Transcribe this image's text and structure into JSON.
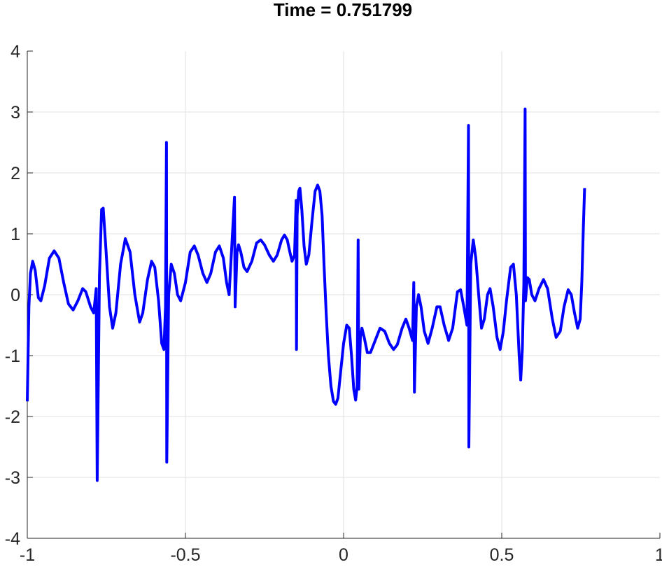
{
  "chart_data": {
    "type": "line",
    "title": "Time = 0.751799",
    "xlabel": "",
    "ylabel": "",
    "xlim": [
      -1,
      1
    ],
    "ylim": [
      -4,
      4
    ],
    "grid": true,
    "legend": "none",
    "x_ticks": [
      -1,
      -0.5,
      0,
      0.5,
      1
    ],
    "x_tick_labels": [
      "-1",
      "-0.5",
      "0",
      "0.5",
      "1"
    ],
    "y_ticks": [
      -4,
      -3,
      -2,
      -1,
      0,
      1,
      2,
      3,
      4
    ],
    "y_tick_labels": [
      "-4",
      "-3",
      "-2",
      "-1",
      "0",
      "1",
      "2",
      "3",
      "4"
    ],
    "colors": {
      "line": "#0000ff",
      "grid": "#e0e0e0",
      "axis": "#262626"
    },
    "series": [
      {
        "name": "",
        "points": [
          [
            -1.0,
            -1.75
          ],
          [
            -0.995,
            -0.2
          ],
          [
            -0.99,
            0.35
          ],
          [
            -0.983,
            0.55
          ],
          [
            -0.975,
            0.4
          ],
          [
            -0.965,
            -0.05
          ],
          [
            -0.957,
            -0.1
          ],
          [
            -0.945,
            0.15
          ],
          [
            -0.93,
            0.6
          ],
          [
            -0.915,
            0.72
          ],
          [
            -0.9,
            0.6
          ],
          [
            -0.885,
            0.2
          ],
          [
            -0.87,
            -0.15
          ],
          [
            -0.855,
            -0.25
          ],
          [
            -0.84,
            -0.1
          ],
          [
            -0.825,
            0.1
          ],
          [
            -0.815,
            0.05
          ],
          [
            -0.8,
            -0.2
          ],
          [
            -0.79,
            -0.3
          ],
          [
            -0.782,
            0.1
          ],
          [
            -0.779,
            -3.05
          ],
          [
            -0.772,
            0.3
          ],
          [
            -0.765,
            1.4
          ],
          [
            -0.76,
            1.42
          ],
          [
            -0.752,
            0.8
          ],
          [
            -0.74,
            -0.2
          ],
          [
            -0.73,
            -0.55
          ],
          [
            -0.72,
            -0.3
          ],
          [
            -0.705,
            0.5
          ],
          [
            -0.69,
            0.92
          ],
          [
            -0.675,
            0.7
          ],
          [
            -0.66,
            0.0
          ],
          [
            -0.645,
            -0.45
          ],
          [
            -0.635,
            -0.3
          ],
          [
            -0.62,
            0.25
          ],
          [
            -0.607,
            0.55
          ],
          [
            -0.597,
            0.45
          ],
          [
            -0.585,
            -0.1
          ],
          [
            -0.575,
            -0.8
          ],
          [
            -0.568,
            -0.9
          ],
          [
            -0.563,
            -0.2
          ],
          [
            -0.56,
            2.5
          ],
          [
            -0.559,
            -2.75
          ],
          [
            -0.553,
            0.0
          ],
          [
            -0.545,
            0.5
          ],
          [
            -0.535,
            0.35
          ],
          [
            -0.525,
            0.0
          ],
          [
            -0.515,
            -0.1
          ],
          [
            -0.5,
            0.2
          ],
          [
            -0.485,
            0.7
          ],
          [
            -0.472,
            0.8
          ],
          [
            -0.46,
            0.65
          ],
          [
            -0.445,
            0.35
          ],
          [
            -0.432,
            0.2
          ],
          [
            -0.42,
            0.35
          ],
          [
            -0.405,
            0.7
          ],
          [
            -0.393,
            0.8
          ],
          [
            -0.38,
            0.6
          ],
          [
            -0.37,
            0.2
          ],
          [
            -0.362,
            0.0
          ],
          [
            -0.345,
            1.6
          ],
          [
            -0.343,
            -0.2
          ],
          [
            -0.337,
            0.7
          ],
          [
            -0.332,
            0.82
          ],
          [
            -0.325,
            0.7
          ],
          [
            -0.315,
            0.45
          ],
          [
            -0.305,
            0.38
          ],
          [
            -0.29,
            0.55
          ],
          [
            -0.275,
            0.85
          ],
          [
            -0.262,
            0.9
          ],
          [
            -0.25,
            0.82
          ],
          [
            -0.235,
            0.65
          ],
          [
            -0.222,
            0.55
          ],
          [
            -0.21,
            0.65
          ],
          [
            -0.196,
            0.9
          ],
          [
            -0.187,
            0.98
          ],
          [
            -0.178,
            0.9
          ],
          [
            -0.17,
            0.7
          ],
          [
            -0.163,
            0.55
          ],
          [
            -0.155,
            0.65
          ],
          [
            -0.15,
            1.55
          ],
          [
            -0.149,
            -0.9
          ],
          [
            -0.147,
            1.3
          ],
          [
            -0.142,
            1.7
          ],
          [
            -0.138,
            1.75
          ],
          [
            -0.132,
            1.4
          ],
          [
            -0.125,
            0.8
          ],
          [
            -0.118,
            0.5
          ],
          [
            -0.11,
            0.65
          ],
          [
            -0.1,
            1.2
          ],
          [
            -0.09,
            1.7
          ],
          [
            -0.082,
            1.8
          ],
          [
            -0.075,
            1.7
          ],
          [
            -0.068,
            1.3
          ],
          [
            -0.062,
            0.5
          ],
          [
            -0.055,
            -0.3
          ],
          [
            -0.048,
            -1.0
          ],
          [
            -0.04,
            -1.5
          ],
          [
            -0.032,
            -1.75
          ],
          [
            -0.025,
            -1.8
          ],
          [
            -0.018,
            -1.7
          ],
          [
            -0.01,
            -1.3
          ],
          [
            0.0,
            -0.8
          ],
          [
            0.01,
            -0.5
          ],
          [
            0.018,
            -0.55
          ],
          [
            0.025,
            -1.0
          ],
          [
            0.032,
            -1.55
          ],
          [
            0.038,
            -1.73
          ],
          [
            0.043,
            -1.5
          ],
          [
            0.046,
            0.9
          ],
          [
            0.048,
            -1.55
          ],
          [
            0.053,
            -0.7
          ],
          [
            0.058,
            -0.55
          ],
          [
            0.065,
            -0.7
          ],
          [
            0.075,
            -0.95
          ],
          [
            0.085,
            -0.95
          ],
          [
            0.1,
            -0.75
          ],
          [
            0.115,
            -0.55
          ],
          [
            0.13,
            -0.6
          ],
          [
            0.145,
            -0.8
          ],
          [
            0.158,
            -0.9
          ],
          [
            0.17,
            -0.82
          ],
          [
            0.185,
            -0.55
          ],
          [
            0.197,
            -0.4
          ],
          [
            0.207,
            -0.55
          ],
          [
            0.218,
            -0.75
          ],
          [
            0.222,
            0.2
          ],
          [
            0.224,
            -1.6
          ],
          [
            0.23,
            -0.2
          ],
          [
            0.237,
            0.0
          ],
          [
            0.245,
            -0.2
          ],
          [
            0.255,
            -0.6
          ],
          [
            0.267,
            -0.8
          ],
          [
            0.28,
            -0.55
          ],
          [
            0.295,
            -0.2
          ],
          [
            0.305,
            -0.2
          ],
          [
            0.318,
            -0.5
          ],
          [
            0.332,
            -0.75
          ],
          [
            0.345,
            -0.55
          ],
          [
            0.36,
            0.05
          ],
          [
            0.37,
            0.08
          ],
          [
            0.38,
            -0.2
          ],
          [
            0.39,
            -0.5
          ],
          [
            0.395,
            2.78
          ],
          [
            0.396,
            -2.5
          ],
          [
            0.402,
            0.5
          ],
          [
            0.41,
            0.9
          ],
          [
            0.418,
            0.6
          ],
          [
            0.427,
            0.0
          ],
          [
            0.436,
            -0.55
          ],
          [
            0.445,
            -0.4
          ],
          [
            0.455,
            0.0
          ],
          [
            0.463,
            0.1
          ],
          [
            0.473,
            -0.2
          ],
          [
            0.485,
            -0.7
          ],
          [
            0.495,
            -0.9
          ],
          [
            0.505,
            -0.6
          ],
          [
            0.515,
            -0.1
          ],
          [
            0.528,
            0.45
          ],
          [
            0.537,
            0.5
          ],
          [
            0.546,
            0.0
          ],
          [
            0.555,
            -1.0
          ],
          [
            0.56,
            -1.4
          ],
          [
            0.565,
            -0.9
          ],
          [
            0.57,
            0.2
          ],
          [
            0.574,
            3.05
          ],
          [
            0.575,
            -0.1
          ],
          [
            0.581,
            0.28
          ],
          [
            0.587,
            0.25
          ],
          [
            0.595,
            0.0
          ],
          [
            0.605,
            -0.1
          ],
          [
            0.618,
            0.1
          ],
          [
            0.632,
            0.25
          ],
          [
            0.645,
            0.1
          ],
          [
            0.66,
            -0.4
          ],
          [
            0.672,
            -0.7
          ],
          [
            0.685,
            -0.6
          ],
          [
            0.697,
            -0.2
          ],
          [
            0.71,
            0.08
          ],
          [
            0.72,
            0.0
          ],
          [
            0.73,
            -0.3
          ],
          [
            0.74,
            -0.55
          ],
          [
            0.748,
            -0.4
          ],
          [
            0.753,
            0.2
          ],
          [
            0.758,
            1.1
          ],
          [
            0.762,
            1.75
          ]
        ]
      }
    ]
  }
}
